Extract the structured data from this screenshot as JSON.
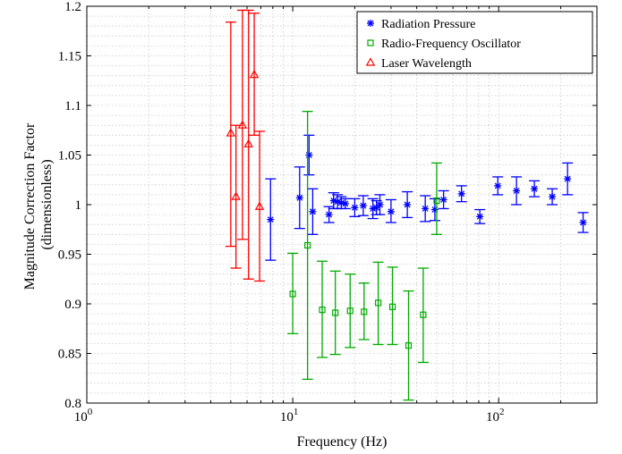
{
  "chart_data": {
    "type": "scatter",
    "title": "",
    "xlabel": "Frequency (Hz)",
    "ylabel": [
      "Magnitude Correction Factor",
      "(dimensionless)"
    ],
    "xscale": "log",
    "xlim": [
      1,
      300
    ],
    "ylim": [
      0.8,
      1.2
    ],
    "grid": true,
    "legend_position": "top-right",
    "x_ticks": [
      {
        "value": 1,
        "base": "10",
        "exp": "0"
      },
      {
        "value": 10,
        "base": "10",
        "exp": "1"
      },
      {
        "value": 100,
        "base": "10",
        "exp": "2"
      }
    ],
    "y_ticks": [
      {
        "value": 0.8,
        "label": "0.8"
      },
      {
        "value": 0.85,
        "label": "0.85"
      },
      {
        "value": 0.9,
        "label": "0.9"
      },
      {
        "value": 0.95,
        "label": "0.95"
      },
      {
        "value": 1.0,
        "label": "1"
      },
      {
        "value": 1.05,
        "label": "1.05"
      },
      {
        "value": 1.1,
        "label": "1.1"
      },
      {
        "value": 1.15,
        "label": "1.15"
      },
      {
        "value": 1.2,
        "label": "1.2"
      }
    ],
    "series": [
      {
        "name": "Radiation Pressure",
        "marker": "asterisk",
        "color": "#0000ff",
        "points": [
          {
            "x": 7.8,
            "y": 0.985,
            "low": 0.944,
            "high": 1.026
          },
          {
            "x": 10.8,
            "y": 1.007,
            "low": 0.976,
            "high": 1.038
          },
          {
            "x": 12.0,
            "y": 1.05,
            "low": 1.03,
            "high": 1.07
          },
          {
            "x": 12.5,
            "y": 0.993,
            "low": 0.97,
            "high": 1.016
          },
          {
            "x": 15.0,
            "y": 0.99,
            "low": 0.982,
            "high": 0.998
          },
          {
            "x": 15.8,
            "y": 1.004,
            "low": 0.996,
            "high": 1.012
          },
          {
            "x": 16.5,
            "y": 1.003,
            "low": 0.996,
            "high": 1.01
          },
          {
            "x": 17.2,
            "y": 1.002,
            "low": 0.996,
            "high": 1.008
          },
          {
            "x": 18.0,
            "y": 1.001,
            "low": 0.996,
            "high": 1.006
          },
          {
            "x": 20.0,
            "y": 0.997,
            "low": 0.988,
            "high": 1.006
          },
          {
            "x": 22.0,
            "y": 0.999,
            "low": 0.989,
            "high": 1.009
          },
          {
            "x": 24.5,
            "y": 0.996,
            "low": 0.986,
            "high": 1.006
          },
          {
            "x": 25.5,
            "y": 0.997,
            "low": 0.99,
            "high": 1.004
          },
          {
            "x": 26.5,
            "y": 1.0,
            "low": 0.99,
            "high": 1.01
          },
          {
            "x": 30.0,
            "y": 0.993,
            "low": 0.982,
            "high": 1.005
          },
          {
            "x": 36.0,
            "y": 1.0,
            "low": 0.987,
            "high": 1.013
          },
          {
            "x": 44.0,
            "y": 0.996,
            "low": 0.983,
            "high": 1.009
          },
          {
            "x": 49.0,
            "y": 0.995,
            "low": 0.984,
            "high": 1.006
          },
          {
            "x": 54.0,
            "y": 1.005,
            "low": 0.996,
            "high": 1.014
          },
          {
            "x": 66.0,
            "y": 1.011,
            "low": 1.003,
            "high": 1.019
          },
          {
            "x": 81.0,
            "y": 0.988,
            "low": 0.981,
            "high": 0.995
          },
          {
            "x": 99.0,
            "y": 1.019,
            "low": 1.01,
            "high": 1.028
          },
          {
            "x": 122.0,
            "y": 1.014,
            "low": 1.0,
            "high": 1.028
          },
          {
            "x": 149.0,
            "y": 1.016,
            "low": 1.008,
            "high": 1.024
          },
          {
            "x": 182.0,
            "y": 1.008,
            "low": 1.0,
            "high": 1.016
          },
          {
            "x": 216.0,
            "y": 1.026,
            "low": 1.01,
            "high": 1.042
          },
          {
            "x": 257.0,
            "y": 0.982,
            "low": 0.972,
            "high": 0.992
          }
        ]
      },
      {
        "name": "Radio-Frequency Oscillator",
        "marker": "square",
        "color": "#00aa00",
        "points": [
          {
            "x": 10.0,
            "y": 0.91,
            "low": 0.87,
            "high": 0.951
          },
          {
            "x": 11.8,
            "y": 0.959,
            "low": 0.824,
            "high": 1.094
          },
          {
            "x": 13.9,
            "y": 0.894,
            "low": 0.846,
            "high": 0.943
          },
          {
            "x": 16.1,
            "y": 0.891,
            "low": 0.849,
            "high": 0.933
          },
          {
            "x": 19.0,
            "y": 0.893,
            "low": 0.856,
            "high": 0.93
          },
          {
            "x": 22.2,
            "y": 0.892,
            "low": 0.864,
            "high": 0.921
          },
          {
            "x": 26.0,
            "y": 0.901,
            "low": 0.859,
            "high": 0.942
          },
          {
            "x": 30.5,
            "y": 0.897,
            "low": 0.859,
            "high": 0.937
          },
          {
            "x": 36.5,
            "y": 0.858,
            "low": 0.803,
            "high": 0.913
          },
          {
            "x": 43.0,
            "y": 0.889,
            "low": 0.841,
            "high": 0.936
          },
          {
            "x": 50.0,
            "y": 1.004,
            "low": 0.97,
            "high": 1.042
          }
        ]
      },
      {
        "name": "Laser Wavelength",
        "marker": "triangle",
        "color": "#ff0000",
        "points": [
          {
            "x": 5.0,
            "y": 1.072,
            "low": 0.958,
            "high": 1.184
          },
          {
            "x": 5.3,
            "y": 1.008,
            "low": 0.936,
            "high": 1.08
          },
          {
            "x": 5.7,
            "y": 1.08,
            "low": 0.965,
            "high": 1.196
          },
          {
            "x": 6.1,
            "y": 1.061,
            "low": 0.925,
            "high": 1.196
          },
          {
            "x": 6.5,
            "y": 1.131,
            "low": 1.07,
            "high": 1.193
          },
          {
            "x": 6.9,
            "y": 0.998,
            "low": 0.923,
            "high": 1.074
          }
        ]
      }
    ]
  }
}
